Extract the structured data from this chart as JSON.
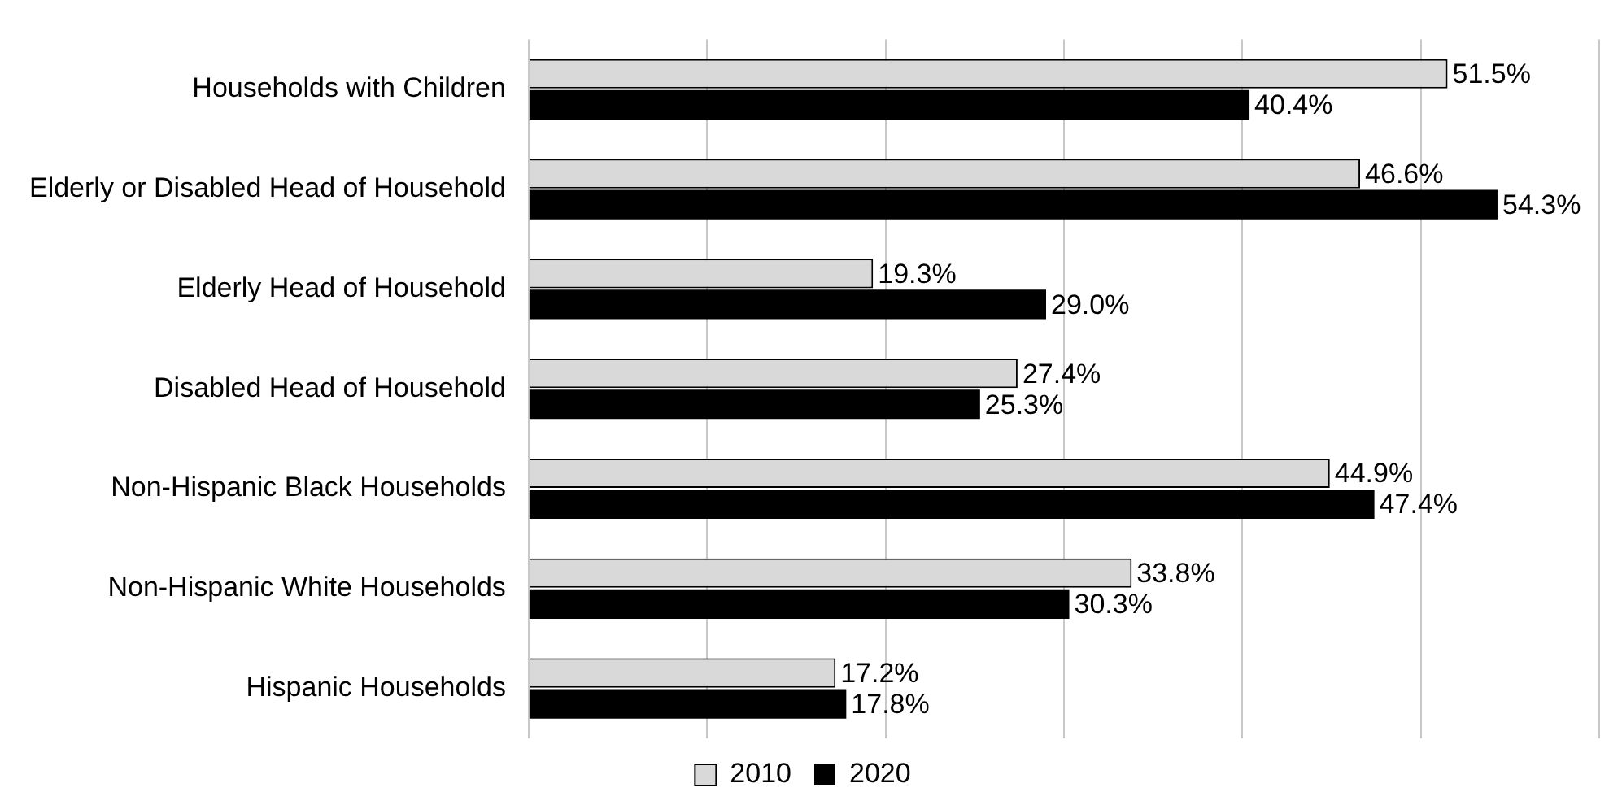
{
  "chart_data": {
    "type": "bar",
    "orientation": "horizontal",
    "categories": [
      "Households with Children",
      "Elderly or Disabled Head of Household",
      "Elderly Head of Household",
      "Disabled Head of Household",
      "Non-Hispanic Black Households",
      "Non-Hispanic White Households",
      "Hispanic Households"
    ],
    "series": [
      {
        "name": "2010",
        "color": "#d9d9d9",
        "values": [
          51.5,
          46.6,
          19.3,
          27.4,
          44.9,
          33.8,
          17.2
        ],
        "value_labels": [
          "51.5%",
          "46.6%",
          "19.3%",
          "27.4%",
          "44.9%",
          "33.8%",
          "17.2%"
        ]
      },
      {
        "name": "2020",
        "color": "#000000",
        "values": [
          40.4,
          54.3,
          29.0,
          25.3,
          47.4,
          30.3,
          17.8
        ],
        "value_labels": [
          "40.4%",
          "54.3%",
          "29.0%",
          "25.3%",
          "47.4%",
          "30.3%",
          "17.8%"
        ]
      }
    ],
    "xlim": [
      0,
      60
    ],
    "xticks": [
      {
        "value": 0,
        "label": null
      },
      {
        "value": 10,
        "label": null
      },
      {
        "value": 20,
        "label": null
      },
      {
        "value": 30,
        "label": null
      },
      {
        "value": 40,
        "label": null
      },
      {
        "value": 50,
        "label": null
      },
      {
        "value": 60,
        "label": null
      }
    ],
    "tick_labels": "y",
    "grid": "x",
    "legend": "bottom"
  }
}
